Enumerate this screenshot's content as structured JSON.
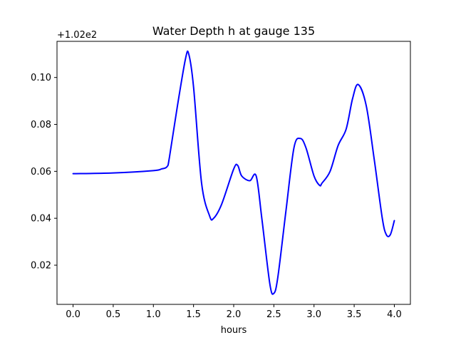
{
  "chart_data": {
    "type": "line",
    "title": "Water Depth h at gauge 135",
    "xlabel": "hours",
    "ylabel": "",
    "y_offset_label": "+1.02e2",
    "xlim": [
      -0.2,
      4.2
    ],
    "ylim": [
      0.0033,
      0.1154
    ],
    "xticks": [
      0.0,
      0.5,
      1.0,
      1.5,
      2.0,
      2.5,
      3.0,
      3.5,
      4.0
    ],
    "xtick_labels": [
      "0.0",
      "0.5",
      "1.0",
      "1.5",
      "2.0",
      "2.5",
      "3.0",
      "3.5",
      "4.0"
    ],
    "yticks": [
      0.02,
      0.04,
      0.06,
      0.08,
      0.1
    ],
    "ytick_labels": [
      "0.02",
      "0.04",
      "0.06",
      "0.08",
      "0.10"
    ],
    "grid": false,
    "legend": "none",
    "series": [
      {
        "color": "#0000ff",
        "x": [
          0.0,
          0.5,
          1.0,
          1.1,
          1.17,
          1.2,
          1.3,
          1.4,
          1.44,
          1.5,
          1.6,
          1.7,
          1.75,
          1.85,
          2.0,
          2.05,
          2.1,
          2.2,
          2.28,
          2.35,
          2.45,
          2.5,
          2.55,
          2.65,
          2.75,
          2.83,
          2.9,
          3.0,
          3.07,
          3.1,
          3.2,
          3.3,
          3.4,
          3.48,
          3.55,
          3.65,
          3.75,
          3.85,
          3.9,
          3.95,
          4.0
        ],
        "y": [
          0.059,
          0.0593,
          0.0603,
          0.061,
          0.062,
          0.066,
          0.088,
          0.108,
          0.11,
          0.096,
          0.055,
          0.041,
          0.04,
          0.046,
          0.061,
          0.0625,
          0.058,
          0.056,
          0.058,
          0.04,
          0.012,
          0.008,
          0.015,
          0.043,
          0.07,
          0.074,
          0.07,
          0.058,
          0.054,
          0.055,
          0.06,
          0.071,
          0.078,
          0.091,
          0.097,
          0.088,
          0.065,
          0.04,
          0.033,
          0.033,
          0.039
        ]
      }
    ]
  }
}
